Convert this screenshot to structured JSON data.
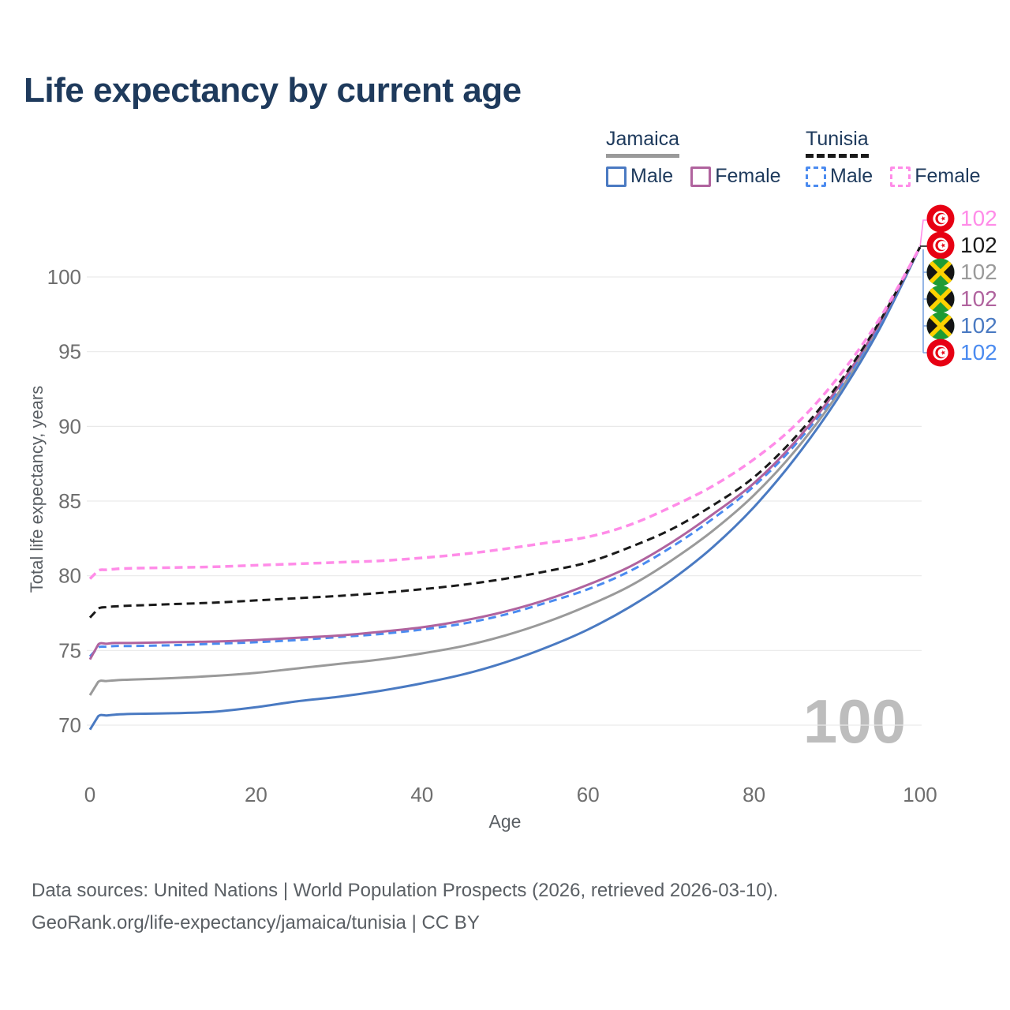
{
  "header": {
    "title": "Life expectancy by current age"
  },
  "legend": {
    "jamaica": {
      "label": "Jamaica",
      "male_label": "Male",
      "female_label": "Female"
    },
    "tunisia": {
      "label": "Tunisia",
      "male_label": "Male",
      "female_label": "Female"
    }
  },
  "axes": {
    "y_title": "Total life expectancy, years",
    "x_title": "Age"
  },
  "watermark": "100",
  "chart_data": {
    "type": "line",
    "title": "Life expectancy by current age",
    "xlabel": "Age",
    "ylabel": "Total life expectancy, years",
    "xlim": [
      0,
      100
    ],
    "ylim": [
      69,
      103
    ],
    "x_ticks": [
      0,
      20,
      40,
      60,
      80,
      100
    ],
    "y_ticks": [
      70,
      75,
      80,
      85,
      90,
      95,
      100
    ],
    "grid": "horizontal",
    "legend_position": "top-right",
    "ages": [
      0,
      1,
      2,
      3,
      5,
      10,
      15,
      20,
      25,
      30,
      35,
      40,
      45,
      50,
      55,
      60,
      65,
      70,
      75,
      80,
      85,
      90,
      95,
      100
    ],
    "series": [
      {
        "id": "jamaica_male",
        "country": "Jamaica",
        "sex": "Male",
        "style": "solid",
        "color": "#4a7ac2",
        "values": [
          69.7,
          70.6,
          70.65,
          70.7,
          70.75,
          70.8,
          70.9,
          71.2,
          71.6,
          71.9,
          72.3,
          72.8,
          73.4,
          74.2,
          75.2,
          76.4,
          77.9,
          79.7,
          81.9,
          84.6,
          87.9,
          91.8,
          96.4,
          102
        ]
      },
      {
        "id": "jamaica_female",
        "country": "Jamaica",
        "sex": "Female",
        "style": "solid",
        "color": "#b0639e",
        "values": [
          74.4,
          75.4,
          75.45,
          75.5,
          75.5,
          75.55,
          75.6,
          75.7,
          75.85,
          76.0,
          76.25,
          76.55,
          77.0,
          77.6,
          78.4,
          79.4,
          80.6,
          82.2,
          84.1,
          86.2,
          89.0,
          92.5,
          96.8,
          102
        ]
      },
      {
        "id": "jamaica_both",
        "country": "Jamaica",
        "sex": "Both",
        "style": "solid",
        "color": "#9a9a9a",
        "values": [
          72.0,
          72.9,
          72.95,
          73.0,
          73.05,
          73.15,
          73.3,
          73.5,
          73.8,
          74.1,
          74.4,
          74.8,
          75.3,
          76.0,
          76.9,
          78.0,
          79.3,
          81.0,
          83.0,
          85.4,
          88.4,
          92.1,
          96.6,
          102
        ]
      },
      {
        "id": "tunisia_male",
        "country": "Tunisia",
        "sex": "Male",
        "style": "dashed",
        "color": "#4b8bf0",
        "values": [
          74.6,
          75.2,
          75.25,
          75.3,
          75.3,
          75.35,
          75.45,
          75.55,
          75.7,
          75.9,
          76.1,
          76.4,
          76.8,
          77.4,
          78.2,
          79.1,
          80.3,
          81.9,
          83.8,
          86.0,
          88.8,
          92.3,
          96.7,
          102
        ]
      },
      {
        "id": "tunisia_female",
        "country": "Tunisia",
        "sex": "Female",
        "style": "dashed",
        "color": "#ff8ce8",
        "values": [
          79.8,
          80.35,
          80.4,
          80.45,
          80.5,
          80.55,
          80.6,
          80.7,
          80.8,
          80.9,
          81.0,
          81.2,
          81.45,
          81.8,
          82.2,
          82.6,
          83.4,
          84.6,
          86.0,
          87.8,
          90.1,
          93.2,
          97.1,
          102
        ]
      },
      {
        "id": "tunisia_both",
        "country": "Tunisia",
        "sex": "Both",
        "style": "dashed",
        "color": "#1a1a1a",
        "values": [
          77.2,
          77.8,
          77.9,
          77.95,
          78.0,
          78.1,
          78.2,
          78.35,
          78.5,
          78.65,
          78.85,
          79.1,
          79.4,
          79.8,
          80.3,
          80.9,
          81.9,
          83.1,
          84.7,
          86.6,
          89.3,
          92.7,
          96.9,
          102
        ]
      }
    ],
    "end_labels": [
      {
        "series": "tunisia_female",
        "flag": "tunisia",
        "value": "102",
        "color": "#ff8ce8"
      },
      {
        "series": "tunisia_both",
        "flag": "tunisia",
        "value": "102",
        "color": "#1a1a1a"
      },
      {
        "series": "jamaica_both",
        "flag": "jamaica",
        "value": "102",
        "color": "#9a9a9a"
      },
      {
        "series": "jamaica_female",
        "flag": "jamaica",
        "value": "102",
        "color": "#b0639e"
      },
      {
        "series": "jamaica_male",
        "flag": "jamaica",
        "value": "102",
        "color": "#4a7ac2"
      },
      {
        "series": "tunisia_male",
        "flag": "tunisia",
        "value": "102",
        "color": "#4b8bf0"
      }
    ],
    "watermark": "100"
  },
  "footer": {
    "line1": "Data sources: United Nations | World Population Prospects (2026, retrieved 2026-03-10).",
    "line2": "GeoRank.org/life-expectancy/jamaica/tunisia | CC BY"
  }
}
